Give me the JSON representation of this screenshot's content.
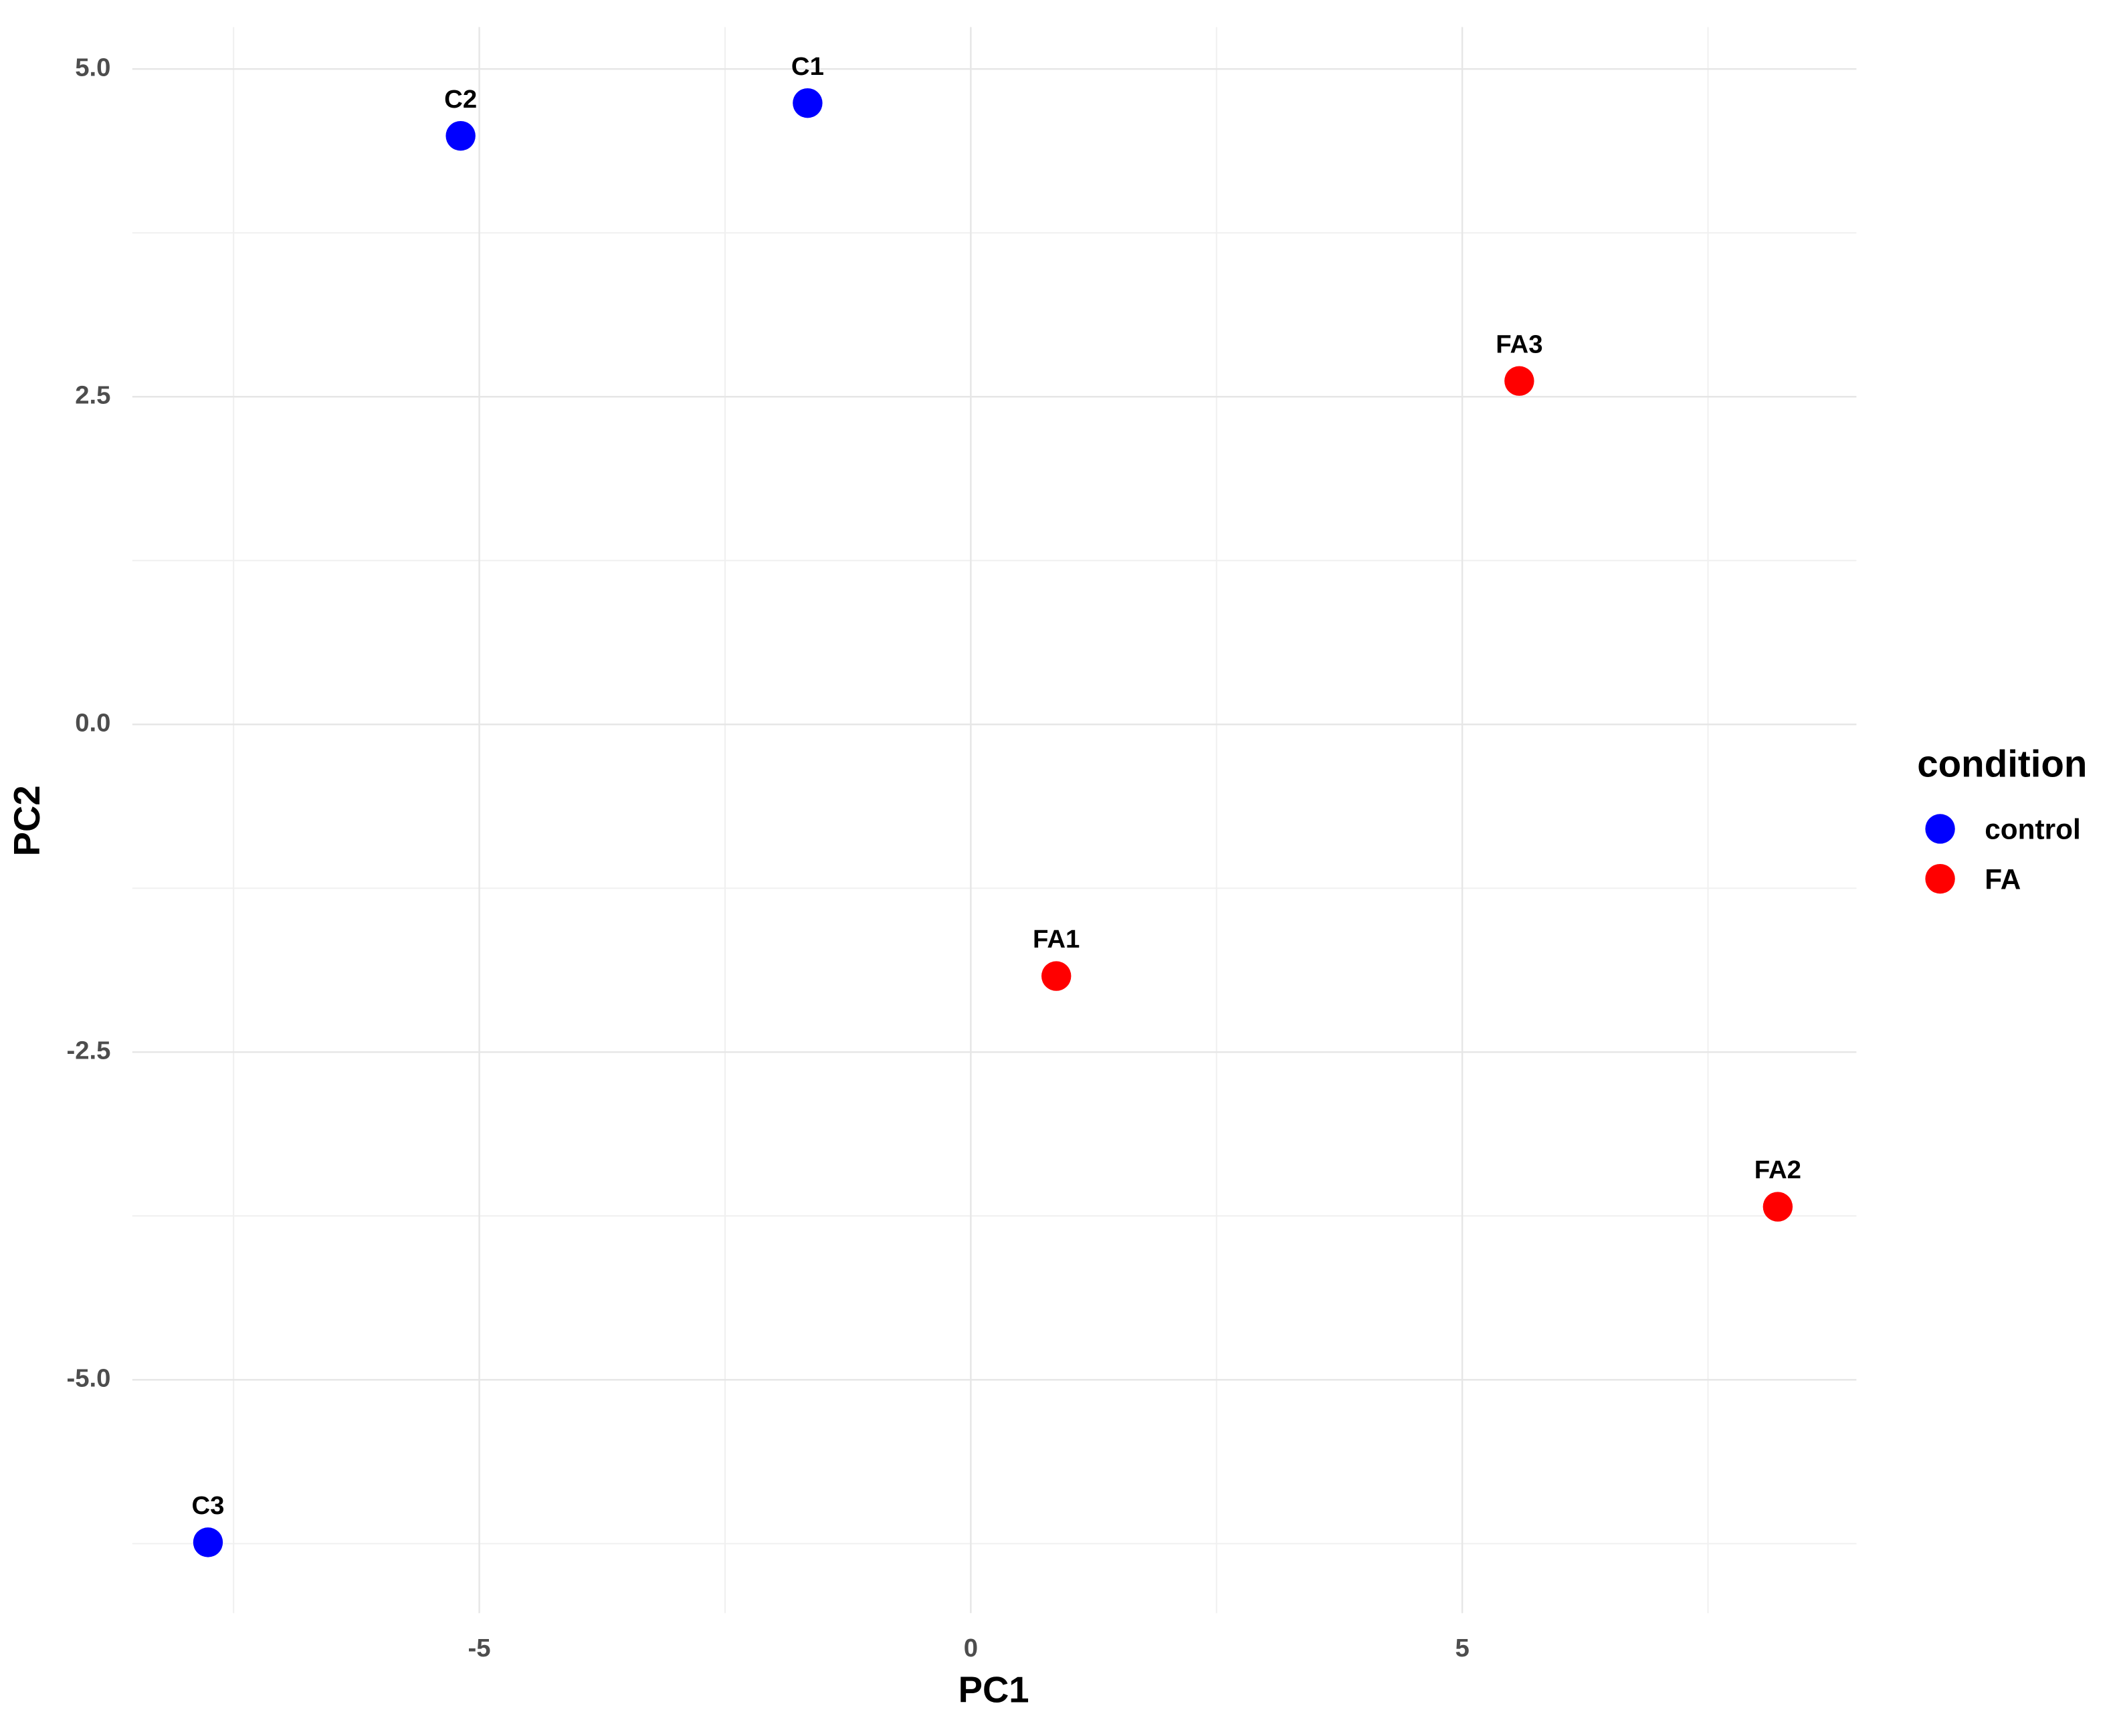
{
  "chart_data": {
    "type": "scatter",
    "xlabel": "PC1",
    "ylabel": "PC2",
    "xlim": [
      -8.53,
      9.01
    ],
    "ylim": [
      -6.78,
      5.32
    ],
    "xticks": [
      -5,
      0,
      5
    ],
    "x_minor_ticks": [
      -7.5,
      -2.5,
      2.5,
      7.5
    ],
    "yticks": [
      {
        "value": -5,
        "label": "-5.0"
      },
      {
        "value": -2.5,
        "label": "-2.5"
      },
      {
        "value": 0,
        "label": "0.0"
      },
      {
        "value": 2.5,
        "label": "2.5"
      },
      {
        "value": 5,
        "label": "5.0"
      }
    ],
    "y_minor_ticks": [
      -6.25,
      -3.75,
      -1.25,
      1.25,
      3.75
    ],
    "grid": true,
    "legend_title": "condition",
    "legend_position": "right",
    "series": [
      {
        "name": "control",
        "color": "#0000ff",
        "x": [
          -1.66,
          -5.19,
          -7.76
        ],
        "values": [
          4.74,
          4.49,
          -6.24
        ],
        "point_labels": [
          "C1",
          "C2",
          "C3"
        ]
      },
      {
        "name": "FA",
        "color": "#ff0000",
        "x": [
          0.87,
          8.21,
          5.58
        ],
        "values": [
          -1.92,
          -3.68,
          2.62
        ],
        "point_labels": [
          "FA1",
          "FA2",
          "FA3"
        ]
      }
    ]
  }
}
